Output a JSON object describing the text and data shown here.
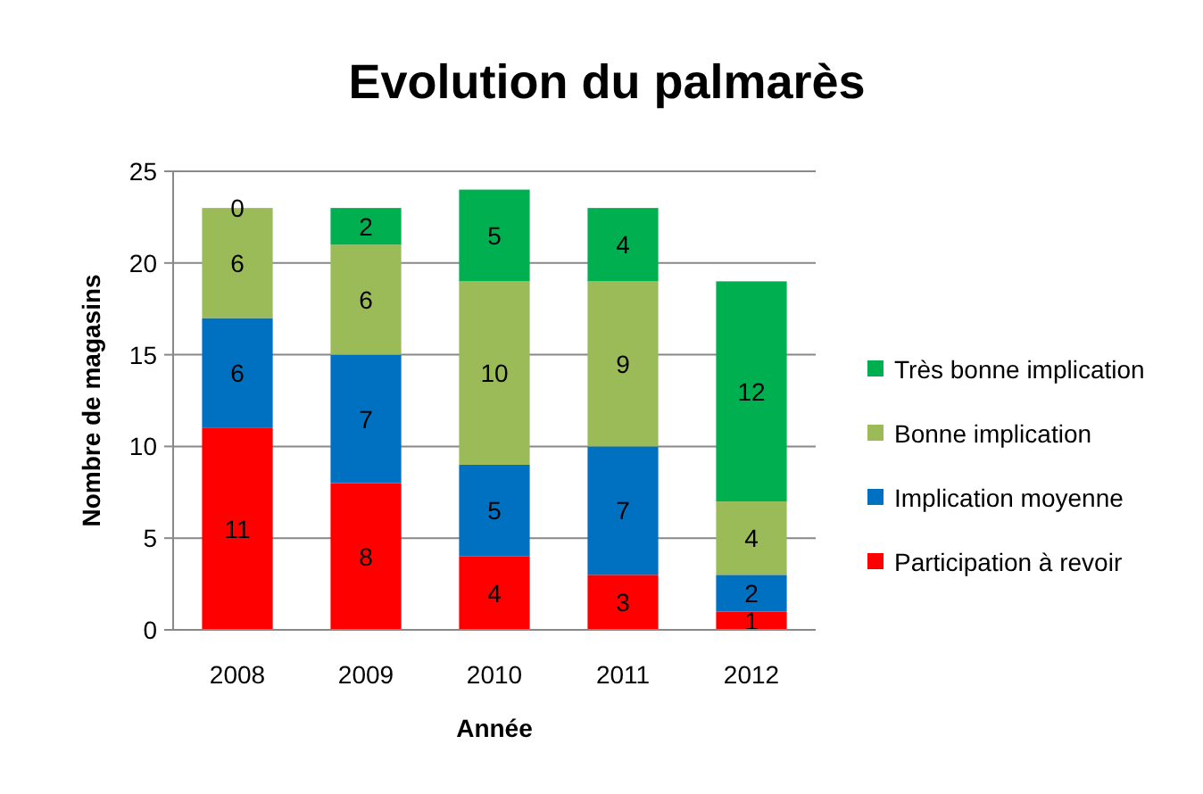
{
  "chart_data": {
    "type": "bar",
    "title": "Evolution du palmarès",
    "xlabel": "Année",
    "ylabel": "Nombre de magasins",
    "categories": [
      "2008",
      "2009",
      "2010",
      "2011",
      "2012"
    ],
    "stacked": true,
    "ylim": [
      0,
      25
    ],
    "yticks": [
      0,
      5,
      10,
      15,
      20,
      25
    ],
    "grid": "y",
    "legend": "right",
    "data_labels": true,
    "series": [
      {
        "name": "Participation à revoir",
        "color": "#ff0000",
        "values": [
          11,
          8,
          4,
          3,
          1
        ]
      },
      {
        "name": "Implication moyenne",
        "color": "#0070c0",
        "values": [
          6,
          7,
          5,
          7,
          2
        ]
      },
      {
        "name": "Bonne implication",
        "color": "#9bbb59",
        "values": [
          6,
          6,
          10,
          9,
          4
        ]
      },
      {
        "name": "Très bonne implication",
        "color": "#00b050",
        "values": [
          0,
          2,
          5,
          4,
          12
        ]
      }
    ]
  }
}
